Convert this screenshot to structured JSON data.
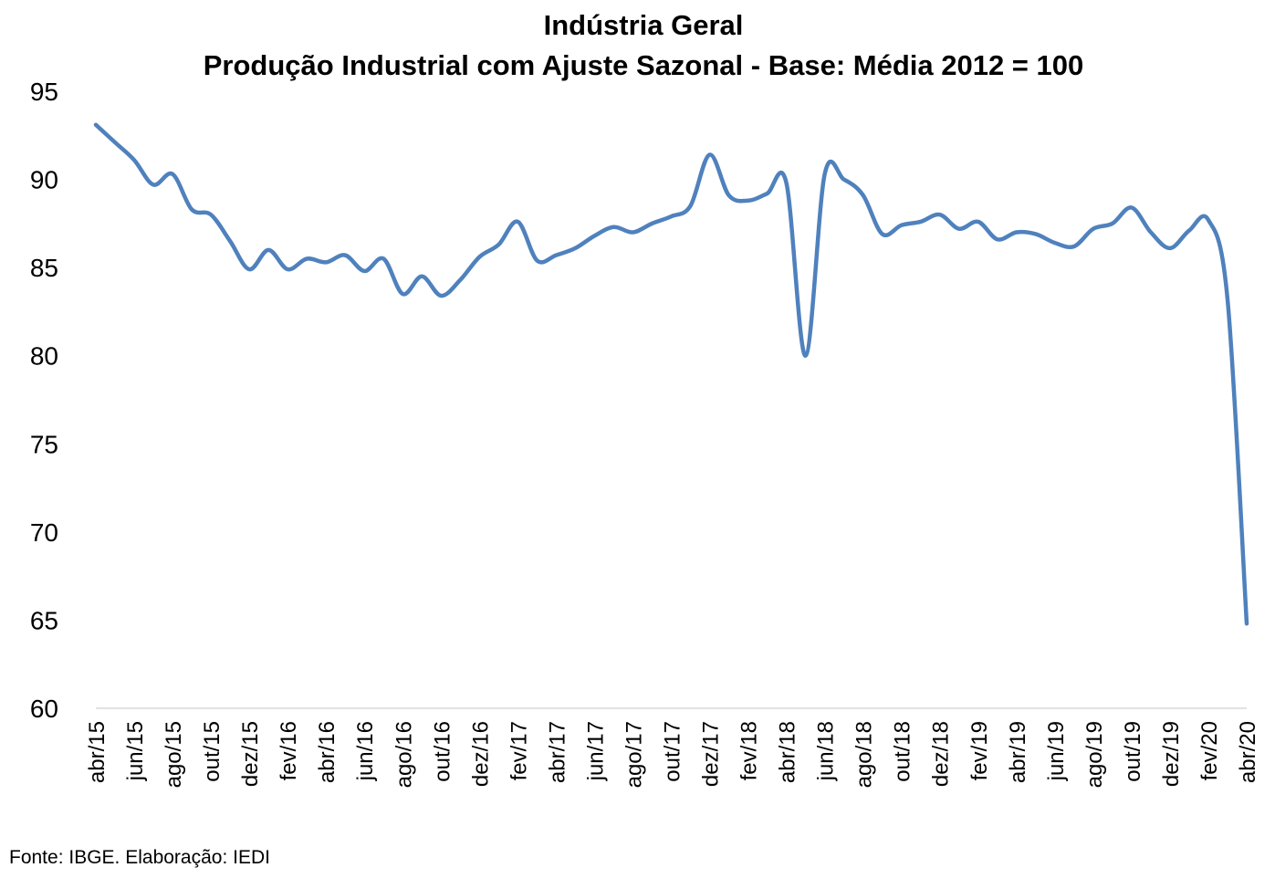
{
  "chart_data": {
    "type": "line",
    "title": "Indústria Geral",
    "subtitle": "Produção Industrial com Ajuste Sazonal - Base: Média 2012 = 100",
    "xlabel": "",
    "ylabel": "",
    "ylim": [
      60,
      95
    ],
    "yticks": [
      60,
      65,
      70,
      75,
      80,
      85,
      90,
      95
    ],
    "grid": false,
    "color": "#4F81BD",
    "x": [
      "abr/15",
      "mai/15",
      "jun/15",
      "jul/15",
      "ago/15",
      "set/15",
      "out/15",
      "nov/15",
      "dez/15",
      "jan/16",
      "fev/16",
      "mar/16",
      "abr/16",
      "mai/16",
      "jun/16",
      "jul/16",
      "ago/16",
      "set/16",
      "out/16",
      "nov/16",
      "dez/16",
      "jan/17",
      "fev/17",
      "mar/17",
      "abr/17",
      "mai/17",
      "jun/17",
      "jul/17",
      "ago/17",
      "set/17",
      "out/17",
      "nov/17",
      "dez/17",
      "jan/18",
      "fev/18",
      "mar/18",
      "abr/18",
      "mai/18",
      "jun/18",
      "jul/18",
      "ago/18",
      "set/18",
      "out/18",
      "nov/18",
      "dez/18",
      "jan/19",
      "fev/19",
      "mar/19",
      "abr/19",
      "mai/19",
      "jun/19",
      "jul/19",
      "ago/19",
      "set/19",
      "out/19",
      "nov/19",
      "dez/19",
      "jan/20",
      "fev/20",
      "mar/20",
      "abr/20"
    ],
    "xtick_labels": [
      "abr/15",
      "jun/15",
      "ago/15",
      "out/15",
      "dez/15",
      "fev/16",
      "abr/16",
      "jun/16",
      "ago/16",
      "out/16",
      "dez/16",
      "fev/17",
      "abr/17",
      "jun/17",
      "ago/17",
      "out/17",
      "dez/17",
      "fev/18",
      "abr/18",
      "jun/18",
      "ago/18",
      "out/18",
      "dez/18",
      "fev/19",
      "abr/19",
      "jun/19",
      "ago/19",
      "out/19",
      "dez/19",
      "fev/20",
      "abr/20"
    ],
    "series": [
      {
        "values": [
          93.1,
          92.1,
          91.1,
          89.7,
          90.3,
          88.3,
          88.0,
          86.5,
          84.9,
          86.0,
          84.9,
          85.5,
          85.3,
          85.7,
          84.8,
          85.5,
          83.5,
          84.5,
          83.4,
          84.3,
          85.6,
          86.3,
          87.6,
          85.4,
          85.7,
          86.1,
          86.8,
          87.3,
          87.0,
          87.5,
          87.9,
          88.5,
          91.4,
          89.1,
          88.8,
          89.2,
          89.8,
          80.0,
          90.3,
          90.0,
          89.1,
          86.9,
          87.4,
          87.6,
          88.0,
          87.2,
          87.6,
          86.6,
          87.0,
          86.9,
          86.4,
          86.2,
          87.2,
          87.5,
          88.4,
          87.0,
          86.1,
          87.1,
          87.7,
          83.2,
          64.8
        ]
      }
    ]
  },
  "source": "Fonte: IBGE. Elaboração: IEDI"
}
